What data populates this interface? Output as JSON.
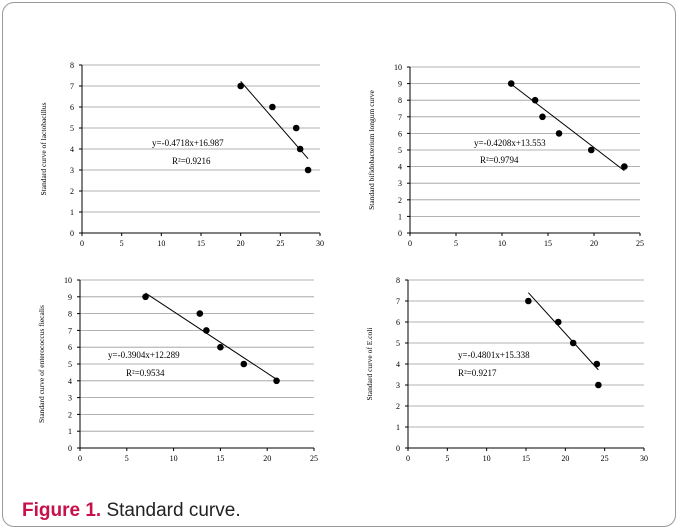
{
  "caption": {
    "label": "Figure 1.",
    "text": " Standard curve."
  },
  "chart_data": [
    {
      "type": "scatter",
      "ylabel": "Standard curve of lactobacillus",
      "xlim": [
        0,
        30
      ],
      "ylim": [
        0,
        8
      ],
      "xticks": [
        0,
        5,
        10,
        15,
        20,
        25,
        30
      ],
      "yticks": [
        0,
        1,
        2,
        3,
        4,
        5,
        6,
        7,
        8
      ],
      "grid": "horizontal",
      "points": [
        [
          20,
          7
        ],
        [
          24,
          6
        ],
        [
          27,
          5
        ],
        [
          27.5,
          4
        ],
        [
          28.5,
          3
        ]
      ],
      "trendline": {
        "x": [
          20,
          28.5
        ]
      },
      "equation": "y=-0.4718x+16.987",
      "r2": "R²=0.9216"
    },
    {
      "type": "scatter",
      "ylabel": "Standard bifidobacterium longum curve",
      "xlim": [
        0,
        25
      ],
      "ylim": [
        0,
        10
      ],
      "xticks": [
        0,
        5,
        10,
        15,
        20,
        25
      ],
      "yticks": [
        0,
        1,
        2,
        3,
        4,
        5,
        6,
        7,
        8,
        9,
        10
      ],
      "grid": "horizontal",
      "points": [
        [
          11,
          9
        ],
        [
          13.6,
          8
        ],
        [
          14.4,
          7
        ],
        [
          16.2,
          6
        ],
        [
          19.7,
          5
        ],
        [
          23.3,
          4
        ]
      ],
      "trendline": {
        "x": [
          11,
          23.3
        ]
      },
      "equation": "y=-0.4208x+13.553",
      "r2": "R²=0.9794"
    },
    {
      "type": "scatter",
      "ylabel": "Standard curve of enterococcus fiecalis",
      "xlim": [
        0,
        25
      ],
      "ylim": [
        0,
        10
      ],
      "xticks": [
        0,
        5,
        10,
        15,
        20,
        25
      ],
      "yticks": [
        0,
        1,
        2,
        3,
        4,
        5,
        6,
        7,
        8,
        9,
        10
      ],
      "grid": "horizontal",
      "points": [
        [
          7,
          9
        ],
        [
          12.8,
          8
        ],
        [
          13.5,
          7
        ],
        [
          15,
          6
        ],
        [
          17.5,
          5
        ],
        [
          21,
          4
        ]
      ],
      "trendline": {
        "x": [
          7,
          21
        ]
      },
      "equation": "y=-0.3904x+12.289",
      "r2": "R²=0.9534"
    },
    {
      "type": "scatter",
      "ylabel": "Standard curve of E.coli",
      "xlim": [
        0,
        30
      ],
      "ylim": [
        0,
        8
      ],
      "xticks": [
        0,
        5,
        10,
        15,
        20,
        25,
        30
      ],
      "yticks": [
        0,
        1,
        2,
        3,
        4,
        5,
        6,
        7,
        8
      ],
      "grid": "horizontal",
      "points": [
        [
          15.3,
          7
        ],
        [
          19.1,
          6
        ],
        [
          21,
          5
        ],
        [
          24,
          4
        ],
        [
          24.2,
          3
        ]
      ],
      "trendline": {
        "x": [
          15.3,
          24.2
        ]
      },
      "equation": "y=-0.4801x+15.338",
      "r2": "R²=0.9217"
    }
  ]
}
